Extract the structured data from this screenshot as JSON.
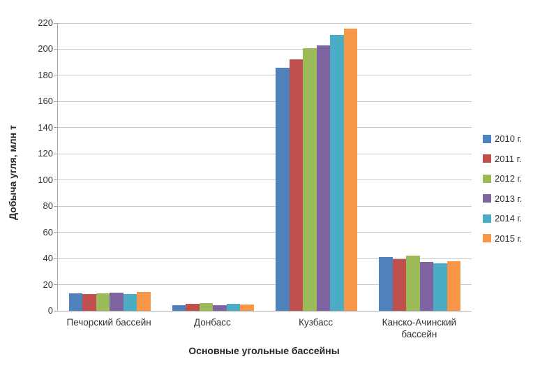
{
  "chart_data": {
    "type": "bar",
    "title": "",
    "categories": [
      "Печорский бассейн",
      "Донбасс",
      "Кузбасс",
      "Канско-Ачинский бассейн"
    ],
    "series": [
      {
        "name": "2010 г.",
        "color": "#4F81BD",
        "values": [
          13.5,
          4.5,
          186,
          41
        ]
      },
      {
        "name": "2011 г.",
        "color": "#C0504D",
        "values": [
          13,
          5.5,
          192,
          39.5
        ]
      },
      {
        "name": "2012 г.",
        "color": "#9BBB59",
        "values": [
          13.5,
          6,
          201,
          42
        ]
      },
      {
        "name": "2013 г.",
        "color": "#8064A2",
        "values": [
          14,
          4.5,
          203,
          37.5
        ]
      },
      {
        "name": "2014 г.",
        "color": "#4BACC6",
        "values": [
          13,
          5.5,
          211,
          36.5
        ]
      },
      {
        "name": "2015 г.",
        "color": "#F79646",
        "values": [
          14.5,
          5,
          215.5,
          38
        ]
      }
    ],
    "xlabel": "Основные угольные бассейны",
    "ylabel": "Добыча угля, млн т",
    "ylim": [
      0,
      220
    ],
    "ytick_step": 20,
    "grid": true,
    "legend_position": "right"
  },
  "colors": {
    "background": "#ffffff",
    "gridline": "#c9c9c9",
    "axis": "#a6a6a6",
    "text": "#323232"
  }
}
